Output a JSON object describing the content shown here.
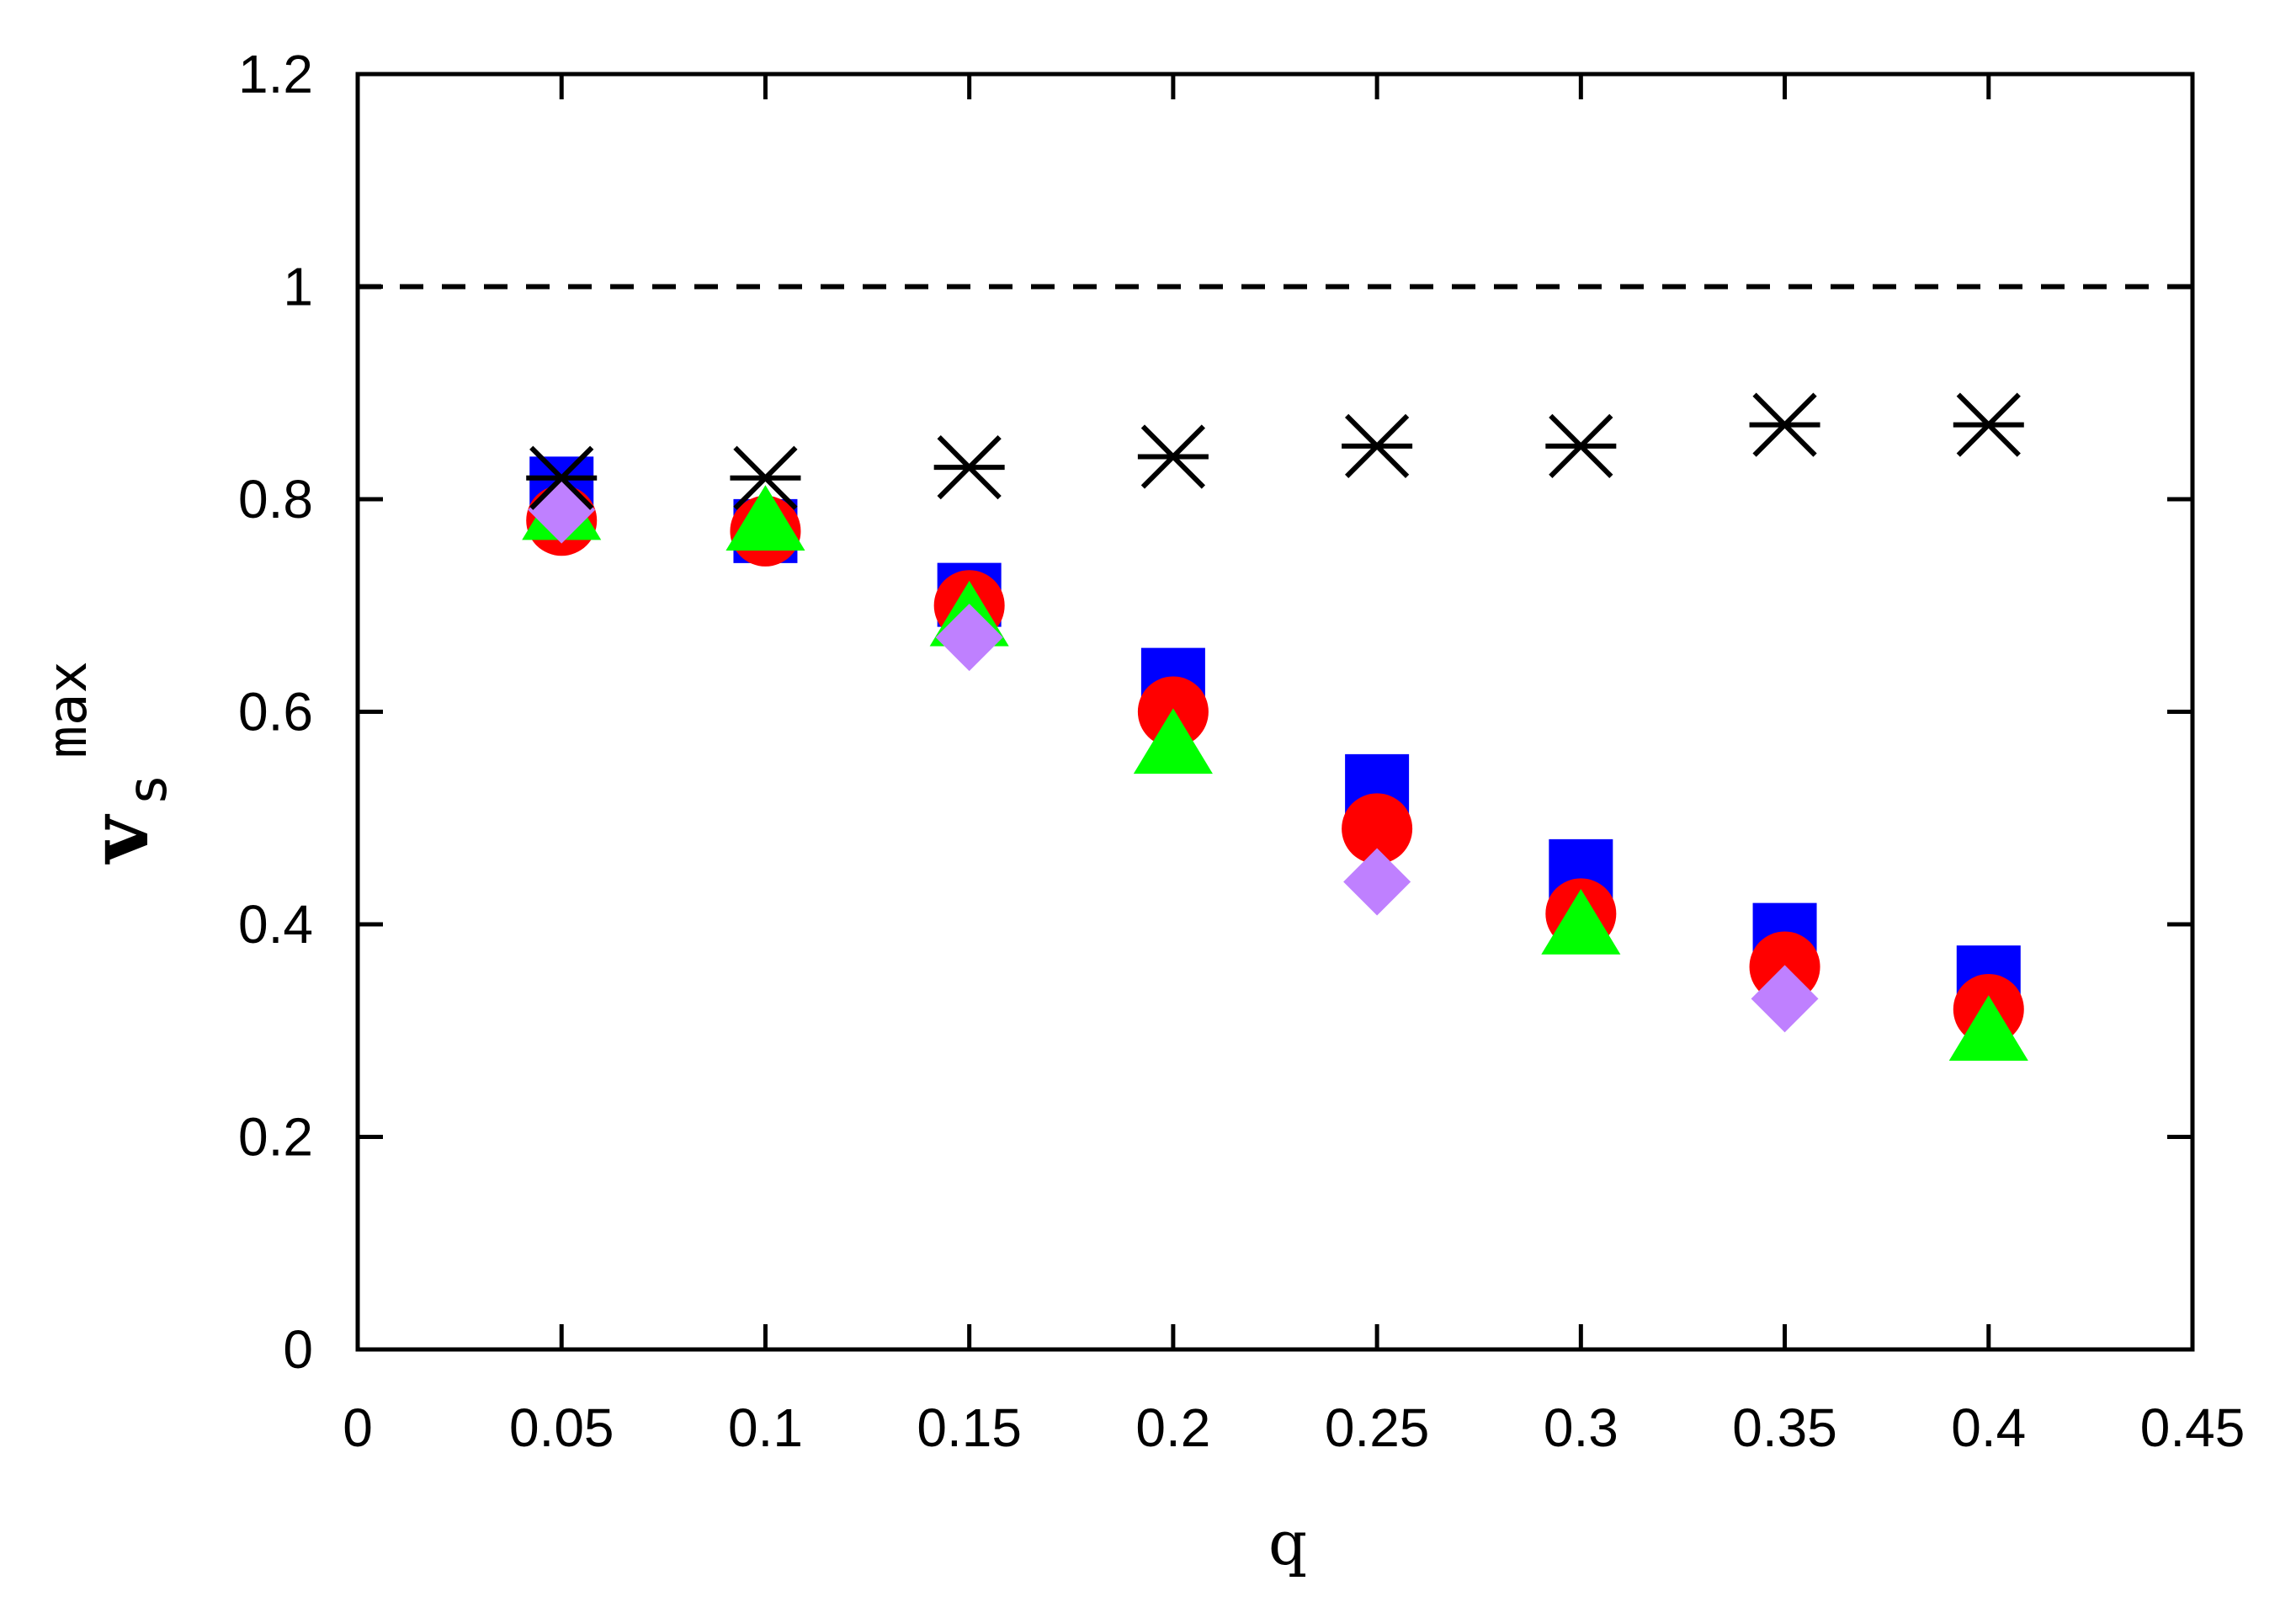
{
  "chart_data": {
    "type": "scatter",
    "title": "",
    "xlabel": "q",
    "ylabel": {
      "main": "v",
      "subscript": "s",
      "superscript": "max"
    },
    "xlim": [
      0,
      0.45
    ],
    "ylim": [
      0,
      1.2
    ],
    "xticks": [
      0,
      0.05,
      0.1,
      0.15,
      0.2,
      0.25,
      0.3,
      0.35,
      0.4,
      0.45
    ],
    "xtick_labels": [
      "0",
      "0.05",
      "0.1",
      "0.15",
      "0.2",
      "0.25",
      "0.3",
      "0.35",
      "0.4",
      "0.45"
    ],
    "yticks": [
      0,
      0.2,
      0.4,
      0.6,
      0.8,
      1.0,
      1.2
    ],
    "ytick_labels": [
      "0",
      "0.2",
      "0.4",
      "0.6",
      "0.8",
      "1",
      "1.2"
    ],
    "grid": false,
    "reference_line": {
      "y": 1.0,
      "style": "dashed",
      "color": "#000000"
    },
    "series": [
      {
        "marker": "square",
        "color": "#0000ff",
        "x": [
          0.05,
          0.1,
          0.15,
          0.2,
          0.25,
          0.3,
          0.35,
          0.4
        ],
        "y": [
          0.81,
          0.77,
          0.71,
          0.63,
          0.53,
          0.45,
          0.39,
          0.35
        ]
      },
      {
        "marker": "circle",
        "color": "#ff0000",
        "x": [
          0.05,
          0.1,
          0.15,
          0.2,
          0.25,
          0.3,
          0.35,
          0.4
        ],
        "y": [
          0.78,
          0.77,
          0.7,
          0.6,
          0.49,
          0.41,
          0.36,
          0.32
        ]
      },
      {
        "marker": "triangle",
        "color": "#00ff00",
        "x": [
          0.05,
          0.1,
          0.15,
          0.2,
          0.25,
          0.3,
          0.35,
          0.4
        ],
        "y": [
          0.79,
          0.78,
          0.69,
          0.57,
          null,
          0.4,
          null,
          0.3
        ]
      },
      {
        "marker": "diamond",
        "color": "#bf80ff",
        "x": [
          0.05,
          0.1,
          0.15,
          0.2,
          0.25,
          0.3,
          0.35,
          0.4
        ],
        "y": [
          0.79,
          null,
          0.67,
          null,
          0.44,
          null,
          0.33,
          null
        ]
      },
      {
        "marker": "asterisk",
        "color": "#000000",
        "x": [
          0.05,
          0.1,
          0.15,
          0.2,
          0.25,
          0.3,
          0.35,
          0.4
        ],
        "y": [
          0.82,
          0.82,
          0.83,
          0.84,
          0.85,
          0.85,
          0.87,
          0.87
        ]
      }
    ]
  }
}
